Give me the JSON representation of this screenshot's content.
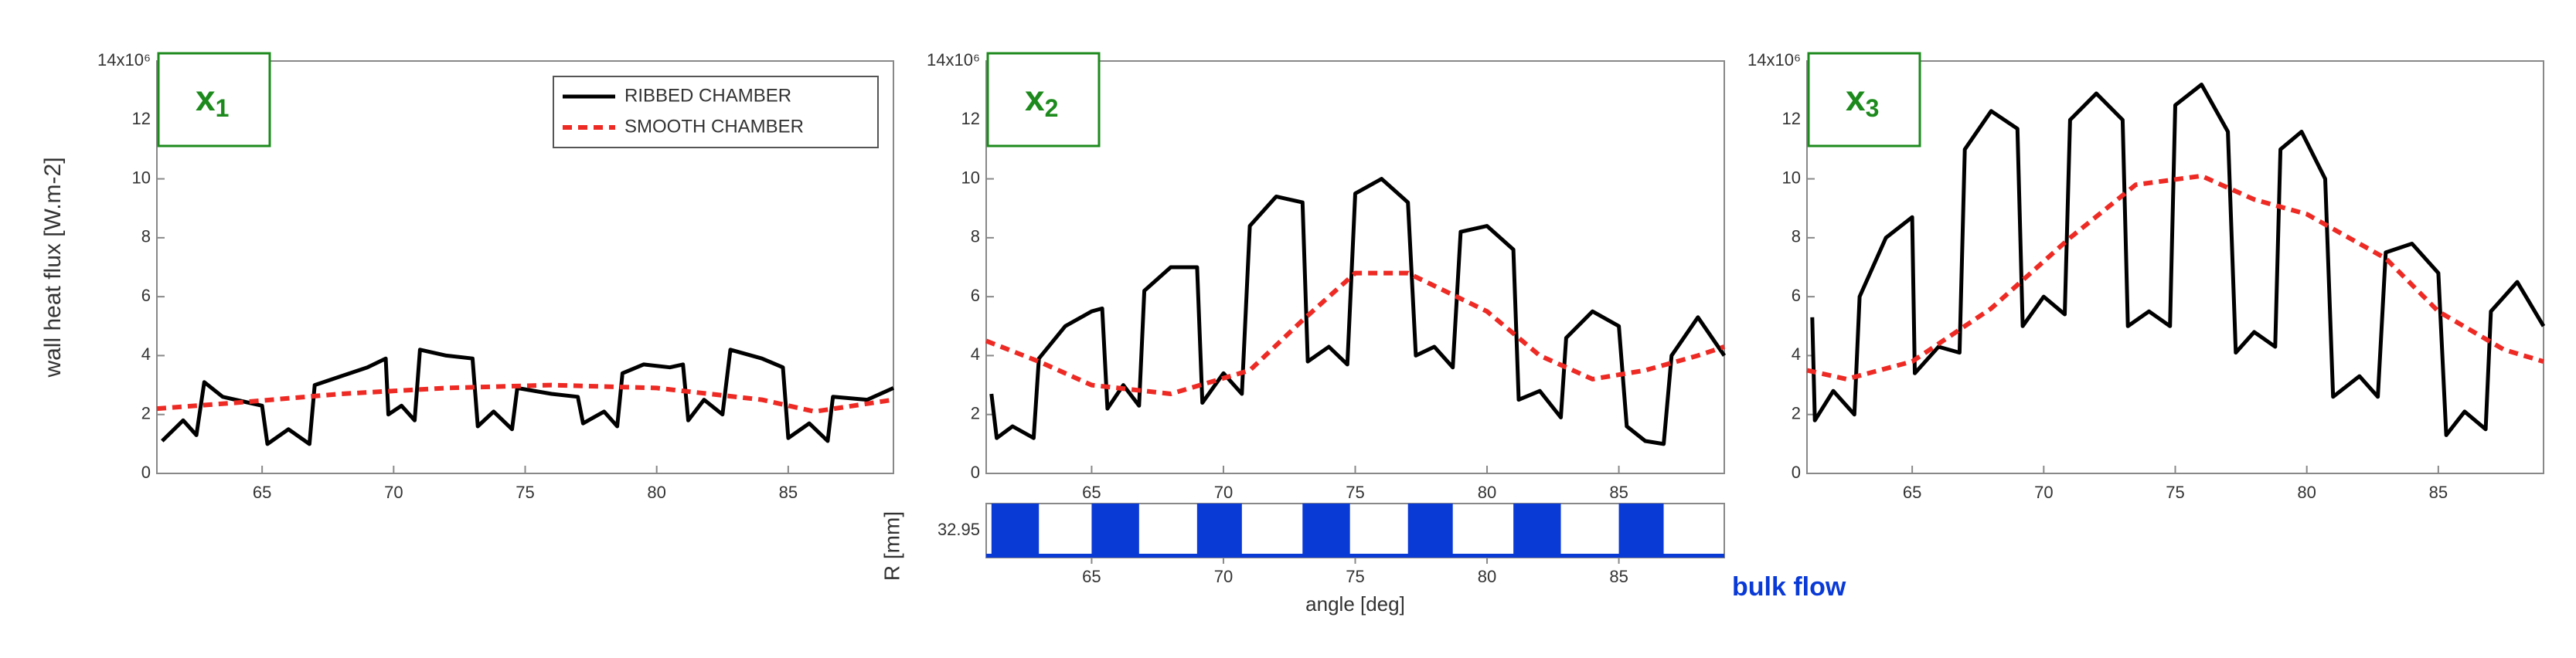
{
  "chart_data": [
    {
      "type": "line",
      "ylabel": "wall heat flux [W.m-2]",
      "label": "x",
      "label_sub": "1",
      "xlim": [
        61,
        89
      ],
      "xticks": [
        65,
        70,
        75,
        80,
        85
      ],
      "ylim": [
        0,
        14
      ],
      "yticks": [
        0,
        2,
        4,
        6,
        8,
        10,
        12,
        {
          "value": 14,
          "label": "14x10⁶"
        }
      ],
      "legend": "top-right",
      "series": [
        {
          "name": "RIBBED CHAMBER",
          "color": "#000000",
          "dash": false,
          "x": [
            61.2,
            62,
            62.5,
            62.8,
            63.5,
            64.5,
            65,
            65.2,
            66,
            66.8,
            67,
            68,
            69,
            69.7,
            69.8,
            70.3,
            70.8,
            71,
            72,
            73,
            73.2,
            73.8,
            74.5,
            74.7,
            76,
            77,
            77.2,
            78,
            78.5,
            78.7,
            79.5,
            80.5,
            81,
            81.2,
            81.8,
            82.5,
            82.8,
            84,
            84.8,
            85,
            85.8,
            86.5,
            86.7,
            88,
            89
          ],
          "values": [
            1.1,
            1.8,
            1.3,
            3.1,
            2.6,
            2.4,
            2.3,
            1.0,
            1.5,
            1.0,
            3.0,
            3.3,
            3.6,
            3.9,
            2.0,
            2.3,
            1.8,
            4.2,
            4.0,
            3.9,
            1.6,
            2.1,
            1.5,
            2.9,
            2.7,
            2.6,
            1.7,
            2.1,
            1.6,
            3.4,
            3.7,
            3.6,
            3.7,
            1.8,
            2.5,
            2.0,
            4.2,
            3.9,
            3.6,
            1.2,
            1.7,
            1.1,
            2.6,
            2.5,
            2.9
          ]
        },
        {
          "name": "SMOOTH CHAMBER",
          "color": "#ee2a24",
          "dash": true,
          "x": [
            61,
            64,
            68,
            72,
            76,
            80,
            84,
            86,
            89
          ],
          "values": [
            2.2,
            2.4,
            2.7,
            2.9,
            3.0,
            2.9,
            2.5,
            2.1,
            2.5
          ]
        }
      ]
    },
    {
      "type": "line",
      "label": "x",
      "label_sub": "2",
      "xlim": [
        61,
        89
      ],
      "xticks": [
        65,
        70,
        75,
        80,
        85
      ],
      "ylim": [
        0,
        14
      ],
      "yticks": [
        0,
        2,
        4,
        6,
        8,
        10,
        12,
        {
          "value": 14,
          "label": "14x10⁶"
        }
      ],
      "series": [
        {
          "color": "#000000",
          "dash": false,
          "x": [
            61.2,
            61.4,
            62,
            62.8,
            63,
            64,
            65,
            65.4,
            65.6,
            66.2,
            66.8,
            67,
            68,
            69,
            69.2,
            70,
            70.7,
            71,
            72,
            73,
            73.2,
            74,
            74.7,
            75,
            76,
            77,
            77.3,
            78,
            78.7,
            79,
            80,
            81,
            81.2,
            82,
            82.8,
            83,
            84,
            85,
            85.3,
            86,
            86.7,
            87,
            88,
            89
          ],
          "values": [
            2.7,
            1.2,
            1.6,
            1.2,
            3.9,
            5.0,
            5.5,
            5.6,
            2.2,
            3.0,
            2.3,
            6.2,
            7.0,
            7.0,
            2.4,
            3.4,
            2.7,
            8.4,
            9.4,
            9.2,
            3.8,
            4.3,
            3.7,
            9.5,
            10.0,
            9.2,
            4.0,
            4.3,
            3.6,
            8.2,
            8.4,
            7.6,
            2.5,
            2.8,
            1.9,
            4.6,
            5.5,
            5.0,
            1.6,
            1.1,
            1.0,
            4.0,
            5.3,
            4.0
          ]
        },
        {
          "color": "#ee2a24",
          "dash": true,
          "x": [
            61,
            63,
            65,
            68,
            71,
            73,
            75,
            77,
            80,
            82,
            84,
            86,
            88,
            89
          ],
          "values": [
            4.5,
            3.8,
            3.0,
            2.7,
            3.5,
            5.2,
            6.8,
            6.8,
            5.5,
            4.0,
            3.2,
            3.5,
            4.0,
            4.3
          ]
        }
      ]
    },
    {
      "type": "line",
      "label": "x",
      "label_sub": "3",
      "xlim": [
        61,
        89
      ],
      "xticks": [
        65,
        70,
        75,
        80,
        85
      ],
      "ylim": [
        0,
        14
      ],
      "yticks": [
        0,
        2,
        4,
        6,
        8,
        10,
        12,
        {
          "value": 14,
          "label": "14x10⁶"
        }
      ],
      "series": [
        {
          "color": "#000000",
          "dash": false,
          "x": [
            61.2,
            61.3,
            62,
            62.8,
            63,
            64,
            65,
            65.1,
            66,
            66.8,
            67,
            68,
            69,
            69.2,
            70,
            70.8,
            71,
            72,
            73,
            73.2,
            74,
            74.8,
            75,
            76,
            77,
            77.3,
            78,
            78.8,
            79,
            79.8,
            80.7,
            81,
            82,
            82.7,
            83,
            84,
            85,
            85.3,
            86,
            86.8,
            87,
            88,
            89
          ],
          "values": [
            5.3,
            1.8,
            2.8,
            2.0,
            6.0,
            8.0,
            8.7,
            3.4,
            4.3,
            4.1,
            11.0,
            12.3,
            11.7,
            5.0,
            6.0,
            5.4,
            12.0,
            12.9,
            12.0,
            5.0,
            5.5,
            5.0,
            12.5,
            13.2,
            11.6,
            4.1,
            4.8,
            4.3,
            11.0,
            11.6,
            10.0,
            2.6,
            3.3,
            2.6,
            7.5,
            7.8,
            6.8,
            1.3,
            2.1,
            1.5,
            5.5,
            6.5,
            5.0
          ]
        },
        {
          "color": "#ee2a24",
          "dash": true,
          "x": [
            61,
            62.5,
            65,
            68,
            71,
            73.5,
            76,
            78,
            80,
            83,
            85,
            87.5,
            89
          ],
          "values": [
            3.5,
            3.2,
            3.8,
            5.6,
            8.0,
            9.8,
            10.1,
            9.3,
            8.8,
            7.3,
            5.5,
            4.2,
            3.8
          ]
        }
      ]
    },
    {
      "type": "strip",
      "xlabel": "angle [deg]",
      "ylabel": "R [mm]",
      "annotation": "bulk flow",
      "xlim": [
        61,
        89
      ],
      "xticks": [
        65,
        70,
        75,
        80,
        85
      ],
      "yticks": [
        32.95
      ],
      "color": "#0a3ad6",
      "ribs": [
        [
          61.2,
          63
        ],
        [
          65,
          66.8
        ],
        [
          69,
          70.7
        ],
        [
          73,
          74.8
        ],
        [
          77,
          78.7
        ],
        [
          81,
          82.8
        ],
        [
          85,
          86.7
        ]
      ]
    }
  ]
}
